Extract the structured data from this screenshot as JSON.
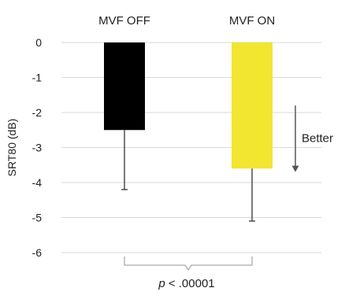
{
  "chart_data": {
    "type": "bar",
    "categories": [
      "MVF OFF",
      "MVF ON"
    ],
    "values": [
      -2.5,
      -3.6
    ],
    "error_low": [
      -4.2,
      -5.1
    ],
    "colors": [
      "#000000",
      "#f2e631"
    ],
    "ylabel": "SRT80 (dB)",
    "ylim": [
      -6,
      0
    ],
    "yticks": [
      "0",
      "-1",
      "-2",
      "-3",
      "-4",
      "-5",
      "-6"
    ],
    "grid": true,
    "gridline_color": "#d9d9d9",
    "annotation": {
      "text": "Better",
      "arrow_from": -1.8,
      "arrow_to": -3.7
    },
    "significance": {
      "p_symbol": "p",
      "p_rest": " < .00001"
    }
  }
}
